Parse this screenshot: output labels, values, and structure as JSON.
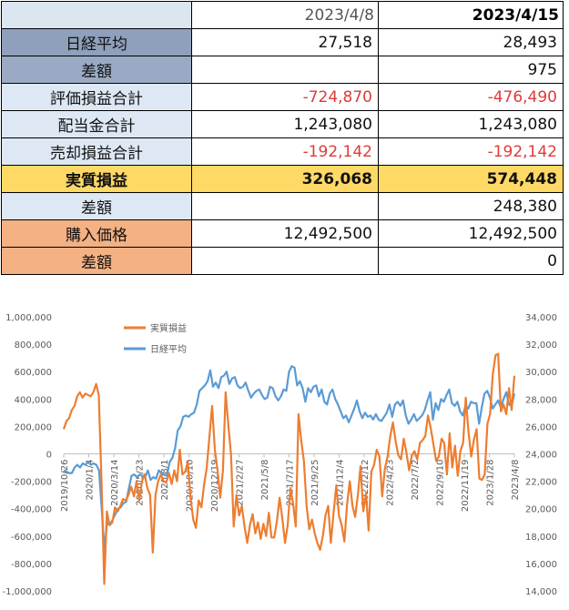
{
  "table": {
    "header": {
      "col1": "2023/4/8",
      "col2": "2023/4/15"
    },
    "rows": [
      {
        "label": "日経平均",
        "v1": "27,518",
        "v2": "28,493",
        "bg": "#8ea0bb",
        "neg": false,
        "bold": false
      },
      {
        "label": "差額",
        "v1": "",
        "v2": "975",
        "bg": "#9aaac4",
        "neg": false,
        "bold": false
      },
      {
        "label": "評価損益合計",
        "v1": "-724,870",
        "v2": "-476,490",
        "bg": "#dde8f4",
        "neg": true,
        "bold": false
      },
      {
        "label": "配当金合計",
        "v1": "1,243,080",
        "v2": "1,243,080",
        "bg": "#dde8f4",
        "neg": false,
        "bold": false
      },
      {
        "label": "売却損益合計",
        "v1": "-192,142",
        "v2": "-192,142",
        "bg": "#dde8f4",
        "neg": true,
        "bold": false
      },
      {
        "label": "実質損益",
        "v1": "326,068",
        "v2": "574,448",
        "bg": "#ffd966",
        "neg": false,
        "bold": true
      },
      {
        "label": "差額",
        "v1": "",
        "v2": "248,380",
        "bg": "#dde8f4",
        "neg": false,
        "bold": false
      },
      {
        "label": "購入価格",
        "v1": "12,492,500",
        "v2": "12,492,500",
        "bg": "#f4b183",
        "neg": false,
        "bold": false
      },
      {
        "label": "差額",
        "v1": "",
        "v2": "0",
        "bg": "#f4b183",
        "neg": false,
        "bold": false
      }
    ]
  },
  "chart_data": {
    "type": "line",
    "title": "",
    "legend_position": "top-left",
    "grid": false,
    "colors": {
      "実質損益": "#ed7d31",
      "日経平均": "#5b9bd5"
    },
    "left_axis": {
      "ylim": [
        -1000000,
        1000000
      ],
      "ticks": [
        "1,000,000",
        "800,000",
        "600,000",
        "400,000",
        "200,000",
        "0",
        "-200,000",
        "-400,000",
        "-600,000",
        "-800,000",
        "-1,000,000"
      ]
    },
    "right_axis": {
      "ylim": [
        14000,
        34000
      ],
      "ticks": [
        "34,000",
        "32,000",
        "30,000",
        "28,000",
        "26,000",
        "24,000",
        "22,000",
        "20,000",
        "18,000",
        "16,000",
        "14,000"
      ]
    },
    "x_tick_labels": [
      "2019/10/26",
      "2020/1/4",
      "2020/3/14",
      "2020/5/23",
      "2020/8/1",
      "2020/10/10",
      "2020/12/19",
      "2021/2/27",
      "2021/5/8",
      "2021/7/17",
      "2021/9/25",
      "2021/12/4",
      "2022/2/12",
      "2022/4/23",
      "2022/7/2",
      "2022/9/10",
      "2022/11/19",
      "2023/1/28",
      "2023/4/8"
    ],
    "series": [
      {
        "name": "実質損益",
        "axis": "left",
        "color": "#ed7d31",
        "values": [
          180000,
          240000,
          260000,
          320000,
          350000,
          420000,
          450000,
          410000,
          440000,
          430000,
          420000,
          450000,
          510000,
          430000,
          -200000,
          -950000,
          -420000,
          -520000,
          -500000,
          -390000,
          -420000,
          -380000,
          -330000,
          -340000,
          -300000,
          -240000,
          -310000,
          -200000,
          -340000,
          -200000,
          -150000,
          -250000,
          -300000,
          -720000,
          -300000,
          -200000,
          -150000,
          -200000,
          -210000,
          -140000,
          -220000,
          -120000,
          -200000,
          30000,
          -150000,
          -130000,
          -60000,
          -320000,
          -480000,
          -540000,
          -340000,
          -390000,
          -230000,
          -100000,
          130000,
          350000,
          30000,
          -120000,
          -320000,
          -120000,
          450000,
          210000,
          -10000,
          -530000,
          -300000,
          -450000,
          -380000,
          -530000,
          -650000,
          -520000,
          -440000,
          -580000,
          -500000,
          -620000,
          -510000,
          -600000,
          -430000,
          -610000,
          -610000,
          -490000,
          -320000,
          -470000,
          -650000,
          -520000,
          -250000,
          -360000,
          -530000,
          290000,
          100000,
          -50000,
          -380000,
          -550000,
          -480000,
          -580000,
          -650000,
          -700000,
          -600000,
          -450000,
          -380000,
          -650000,
          -430000,
          -230000,
          -450000,
          -520000,
          -640000,
          -370000,
          -200000,
          -380000,
          -460000,
          -300000,
          -90000,
          -420000,
          -290000,
          -560000,
          -130000,
          -80000,
          30000,
          -20000,
          -310000,
          -110000,
          -20000,
          130000,
          230000,
          90000,
          -10000,
          -40000,
          110000,
          10000,
          -120000,
          -10000,
          20000,
          -40000,
          80000,
          100000,
          130000,
          280000,
          190000,
          70000,
          -50000,
          -20000,
          110000,
          80000,
          -150000,
          150000,
          -100000,
          60000,
          -160000,
          20000,
          80000,
          410000,
          160000,
          -20000,
          100000,
          180000,
          -180000,
          -190000,
          -150000,
          220000,
          290000,
          580000,
          720000,
          730000,
          310000,
          360000,
          290000,
          480000,
          320000,
          570000
        ]
      },
      {
        "name": "日経平均",
        "axis": "right",
        "color": "#5b9bd5",
        "values": [
          22800,
          22700,
          22600,
          22600,
          23000,
          23200,
          23000,
          23300,
          23200,
          23400,
          23200,
          23300,
          23200,
          22800,
          20000,
          17000,
          19000,
          18800,
          19200,
          19600,
          20000,
          20100,
          20400,
          20500,
          21500,
          22400,
          22500,
          22300,
          22500,
          22400,
          22300,
          22800,
          22100,
          22300,
          22200,
          22800,
          22600,
          22500,
          22400,
          23400,
          23700,
          24400,
          25700,
          26000,
          26700,
          26800,
          26700,
          26900,
          27000,
          27600,
          28600,
          28800,
          29000,
          29300,
          30100,
          28900,
          29200,
          28800,
          29600,
          29700,
          30000,
          29100,
          29500,
          29600,
          29000,
          28800,
          28900,
          29200,
          28600,
          28100,
          28400,
          28600,
          28700,
          28300,
          28000,
          28100,
          28900,
          28800,
          28200,
          27900,
          28200,
          28700,
          28600,
          30000,
          30400,
          30300,
          29000,
          29300,
          28800,
          27800,
          28800,
          28500,
          28900,
          29000,
          28200,
          28700,
          27800,
          27600,
          28400,
          28700,
          28000,
          27600,
          27100,
          26600,
          26800,
          26300,
          26800,
          27300,
          27900,
          27100,
          26600,
          27000,
          26700,
          26800,
          26500,
          26900,
          26500,
          26400,
          26700,
          27000,
          27600,
          26700,
          27600,
          27800,
          27500,
          27900,
          26800,
          26200,
          26500,
          26900,
          26400,
          26600,
          26800,
          27200,
          27900,
          28500,
          26500,
          27700,
          27200,
          28000,
          27800,
          28300,
          28700,
          27700,
          27500,
          27800,
          27100,
          26800,
          27500,
          27300,
          27800,
          27700,
          27700,
          26200,
          27400,
          28400,
          28600,
          28100,
          27300,
          27600,
          27900,
          27400,
          28000,
          28500,
          27600,
          27500,
          28400
        ]
      }
    ]
  }
}
